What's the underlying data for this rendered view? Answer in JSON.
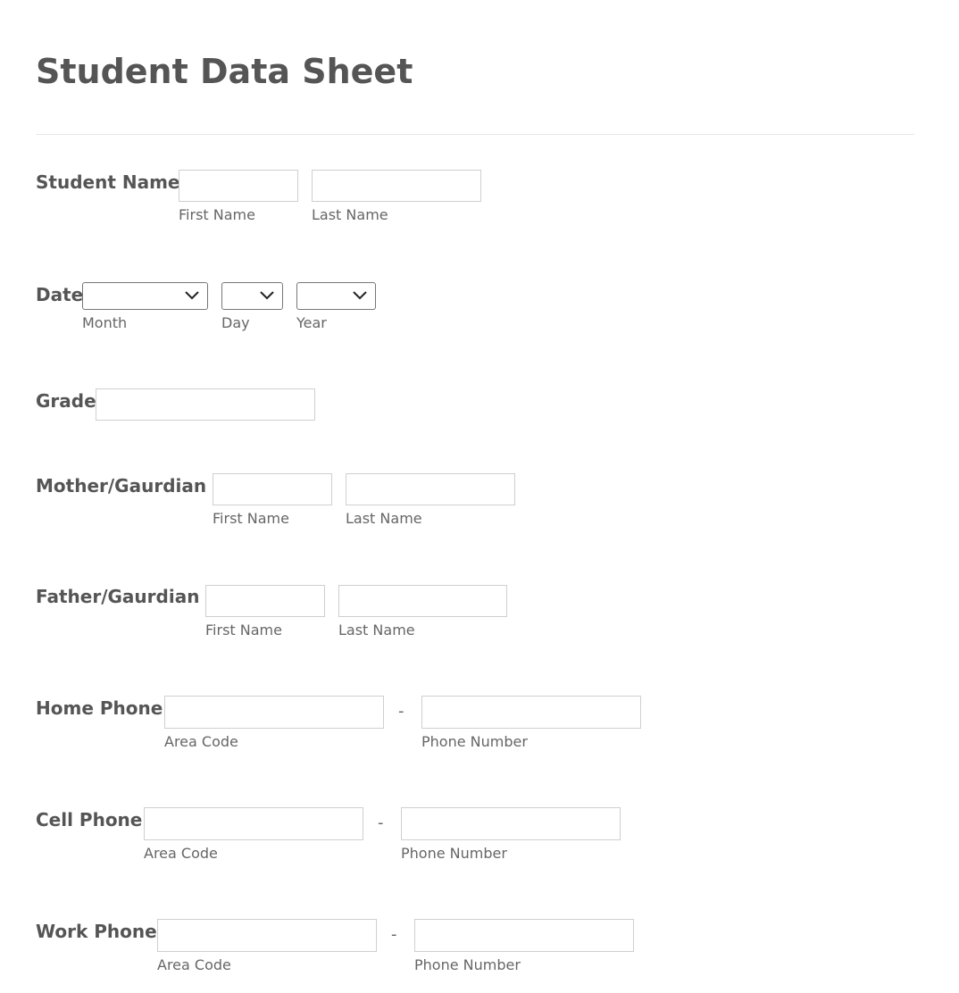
{
  "title": "Student Data Sheet",
  "fields": {
    "student_name": {
      "label": "Student Name",
      "first": "First Name",
      "last": "Last Name"
    },
    "date": {
      "label": "Date",
      "month": "Month",
      "day": "Day",
      "year": "Year",
      "icon": "chevron-down-icon"
    },
    "grade": {
      "label": "Grade"
    },
    "mother": {
      "label": "Mother/Gaurdian",
      "first": "First Name",
      "last": "Last Name"
    },
    "father": {
      "label": "Father/Gaurdian",
      "first": "First Name",
      "last": "Last Name"
    },
    "home_phone": {
      "label": "Home Phone",
      "area": "Area Code",
      "number": "Phone Number",
      "sep": "-"
    },
    "cell_phone": {
      "label": "Cell Phone",
      "area": "Area Code",
      "number": "Phone Number",
      "sep": "-"
    },
    "work_phone": {
      "label": "Work Phone",
      "area": "Area Code",
      "number": "Phone Number",
      "sep": "-"
    }
  }
}
